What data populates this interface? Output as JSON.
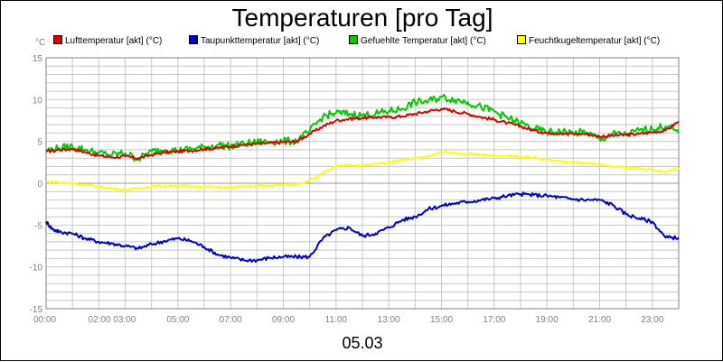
{
  "chart_data": {
    "type": "line",
    "title": "Temperaturen [pro Tag]",
    "unit_label": "°C",
    "xlabel": "05.03",
    "ylim": [
      -15,
      15
    ],
    "yticks": [
      15,
      10,
      5,
      0,
      -5,
      -10,
      -15
    ],
    "xlim_hours": [
      0,
      24
    ],
    "xticks": [
      {
        "hour": 0,
        "label": "00:00"
      },
      {
        "hour": 2.5,
        "label": "02:00 03:00"
      },
      {
        "hour": 5,
        "label": "05:00"
      },
      {
        "hour": 7,
        "label": "07:00"
      },
      {
        "hour": 9,
        "label": "09:00"
      },
      {
        "hour": 11,
        "label": "11:00"
      },
      {
        "hour": 13,
        "label": "13:00"
      },
      {
        "hour": 15,
        "label": "15:00"
      },
      {
        "hour": 17,
        "label": "17:00"
      },
      {
        "hour": 19,
        "label": "19:00"
      },
      {
        "hour": 21,
        "label": "21:00"
      },
      {
        "hour": 23,
        "label": "23:00"
      }
    ],
    "grid": true,
    "series": [
      {
        "name": "Lufttemperatur [akt] (°C)",
        "color": "#dd0000",
        "x": [
          0,
          0.5,
          1,
          1.5,
          2,
          2.5,
          3,
          3.5,
          4,
          4.5,
          5,
          5.5,
          6,
          6.5,
          7,
          7.5,
          8,
          8.5,
          9,
          9.5,
          10,
          10.5,
          11,
          11.5,
          12,
          12.5,
          13,
          13.5,
          14,
          14.5,
          15,
          15.5,
          16,
          16.5,
          17,
          17.5,
          18,
          18.5,
          19,
          19.5,
          20,
          20.5,
          21,
          21.5,
          22,
          22.5,
          23,
          23.5,
          24
        ],
        "values": [
          3.8,
          4.0,
          4.1,
          3.7,
          3.3,
          3.1,
          3.2,
          3.0,
          3.4,
          3.7,
          3.8,
          3.9,
          4.1,
          4.2,
          4.4,
          4.6,
          4.7,
          4.8,
          4.9,
          5.0,
          5.9,
          6.8,
          7.5,
          7.7,
          7.8,
          7.9,
          7.9,
          8.0,
          8.3,
          8.6,
          8.9,
          8.6,
          8.3,
          7.9,
          7.6,
          7.2,
          6.8,
          6.3,
          6.0,
          6.0,
          5.9,
          5.9,
          5.6,
          5.7,
          5.8,
          5.9,
          6.1,
          6.3,
          7.4
        ]
      },
      {
        "name": "Taupunkttemperatur [akt] (°C)",
        "color": "#0000cc",
        "x": [
          0,
          0.25,
          0.5,
          1,
          1.5,
          2,
          2.5,
          3,
          3.5,
          4,
          4.5,
          5,
          5.5,
          6,
          6.5,
          7,
          7.5,
          8,
          8.5,
          9,
          9.5,
          10,
          10.5,
          11,
          11.5,
          12,
          12.5,
          13,
          13.5,
          14,
          14.5,
          15,
          15.5,
          16,
          16.5,
          17,
          17.5,
          18,
          18.5,
          19,
          19.5,
          20,
          20.5,
          21,
          21.5,
          22,
          22.5,
          23,
          23.5,
          24
        ],
        "values": [
          -4.6,
          -5.5,
          -5.8,
          -6.0,
          -6.6,
          -7.0,
          -7.2,
          -7.5,
          -7.8,
          -7.3,
          -6.9,
          -6.6,
          -6.9,
          -7.6,
          -8.5,
          -8.9,
          -9.2,
          -9.2,
          -8.9,
          -8.8,
          -8.8,
          -8.8,
          -6.6,
          -5.6,
          -5.3,
          -6.3,
          -6.0,
          -5.3,
          -4.4,
          -4.0,
          -3.1,
          -2.7,
          -2.4,
          -2.2,
          -2.0,
          -1.8,
          -1.5,
          -1.3,
          -1.4,
          -1.5,
          -1.7,
          -1.9,
          -2.0,
          -2.0,
          -2.6,
          -3.7,
          -4.2,
          -4.6,
          -6.5,
          -6.5
        ]
      },
      {
        "name": "Gefuehlte Temperatur [akt] (°C)",
        "color": "#00cc00",
        "x": [
          0,
          0.5,
          1,
          1.5,
          2,
          2.5,
          3,
          3.5,
          4,
          4.5,
          5,
          5.5,
          6,
          6.5,
          7,
          7.5,
          8,
          8.5,
          9,
          9.5,
          10,
          10.5,
          11,
          11.5,
          12,
          12.5,
          13,
          13.5,
          14,
          14.5,
          15,
          15.5,
          16,
          16.5,
          17,
          17.5,
          18,
          18.5,
          19,
          19.5,
          20,
          20.5,
          21,
          21.5,
          22,
          22.5,
          23,
          23.5,
          24
        ],
        "values": [
          3.9,
          4.2,
          4.4,
          4.0,
          3.6,
          3.4,
          3.6,
          2.9,
          3.8,
          4.0,
          3.9,
          4.1,
          4.3,
          4.6,
          4.4,
          4.7,
          4.9,
          5.0,
          5.0,
          5.1,
          6.2,
          8.0,
          8.4,
          8.3,
          8.1,
          8.3,
          8.6,
          8.9,
          9.7,
          9.8,
          10.3,
          10.0,
          9.7,
          9.1,
          8.6,
          7.8,
          7.2,
          6.5,
          6.1,
          6.2,
          6.0,
          6.1,
          5.2,
          5.9,
          5.8,
          6.3,
          6.5,
          6.8,
          6.0
        ]
      },
      {
        "name": "Feuchtkugeltemperatur [akt] (°C)",
        "color": "#ffff00",
        "x": [
          0,
          0.5,
          1,
          1.5,
          2,
          2.5,
          3,
          3.5,
          4,
          4.5,
          5,
          5.5,
          6,
          6.5,
          7,
          7.5,
          8,
          8.5,
          9,
          9.5,
          10,
          10.5,
          11,
          11.5,
          12,
          12.5,
          13,
          13.5,
          14,
          14.5,
          15,
          15.5,
          16,
          16.5,
          17,
          17.5,
          18,
          18.5,
          19,
          19.5,
          20,
          20.5,
          21,
          21.5,
          22,
          22.5,
          23,
          23.5,
          24
        ],
        "values": [
          0.2,
          0.1,
          0.0,
          -0.2,
          -0.4,
          -0.6,
          -0.8,
          -0.6,
          -0.4,
          -0.3,
          -0.3,
          -0.4,
          -0.4,
          -0.5,
          -0.5,
          -0.4,
          -0.3,
          -0.3,
          -0.2,
          -0.1,
          0.3,
          1.2,
          2.0,
          2.2,
          2.1,
          2.3,
          2.5,
          2.8,
          3.0,
          3.2,
          3.7,
          3.6,
          3.5,
          3.4,
          3.3,
          3.3,
          3.2,
          3.1,
          2.8,
          2.6,
          2.5,
          2.4,
          2.2,
          2.0,
          1.9,
          1.8,
          1.6,
          1.3,
          1.8
        ]
      }
    ]
  }
}
